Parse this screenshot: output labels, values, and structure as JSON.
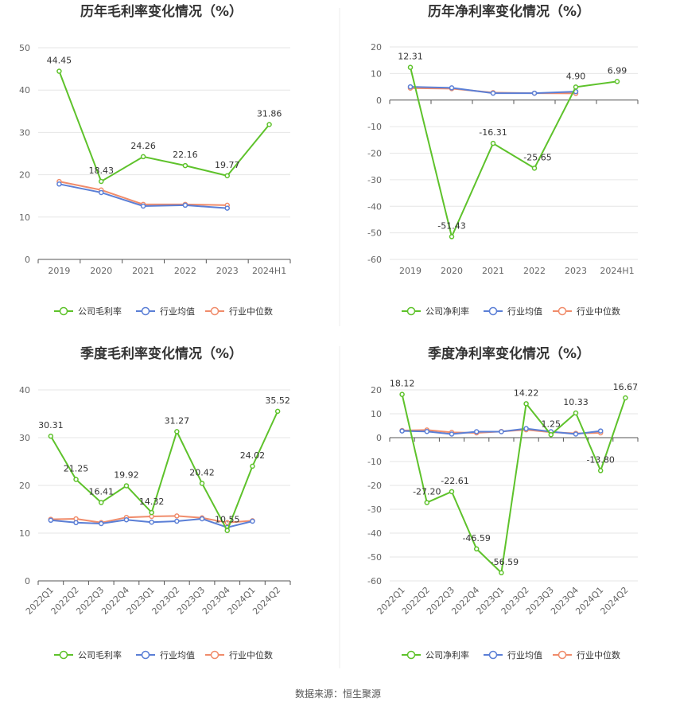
{
  "colors": {
    "company": "#5ec22b",
    "avg": "#5b7fd6",
    "median": "#f08c6b",
    "grid": "#e6e6e6",
    "axis": "#555555"
  },
  "legend": {
    "gross_company": "公司毛利率",
    "net_company": "公司净利率",
    "avg": "行业均值",
    "median": "行业中位数"
  },
  "source": "数据来源：恒生聚源",
  "chart_data": [
    {
      "type": "line",
      "title": "历年毛利率变化情况（%）",
      "categories": [
        "2019",
        "2020",
        "2021",
        "2022",
        "2023",
        "2024H1"
      ],
      "ylim": [
        0,
        50
      ],
      "yticks": [
        0,
        10,
        20,
        30,
        40,
        50
      ],
      "series": [
        {
          "name": "公司毛利率",
          "values": [
            44.45,
            18.43,
            24.26,
            22.16,
            19.77,
            31.86
          ]
        },
        {
          "name": "行业均值",
          "values": [
            17.8,
            15.8,
            12.6,
            12.8,
            12.1,
            null
          ]
        },
        {
          "name": "行业中位数",
          "values": [
            18.4,
            16.4,
            13.0,
            13.0,
            12.8,
            null
          ]
        }
      ],
      "data_labels": [
        "44.45",
        "18.43",
        "24.26",
        "22.16",
        "19.77",
        "31.86"
      ]
    },
    {
      "type": "line",
      "title": "历年净利率变化情况（%）",
      "categories": [
        "2019",
        "2020",
        "2021",
        "2022",
        "2023",
        "2024H1"
      ],
      "ylim": [
        -60,
        20
      ],
      "yticks": [
        -60,
        -50,
        -40,
        -30,
        -20,
        -10,
        0,
        10,
        20
      ],
      "series": [
        {
          "name": "公司净利率",
          "values": [
            12.31,
            -51.43,
            -16.31,
            -25.65,
            4.9,
            6.99
          ]
        },
        {
          "name": "行业均值",
          "values": [
            5.0,
            4.6,
            2.6,
            2.6,
            3.2,
            null
          ]
        },
        {
          "name": "行业中位数",
          "values": [
            4.5,
            4.3,
            2.8,
            2.6,
            2.5,
            null
          ]
        }
      ],
      "data_labels": [
        "12.31",
        "-51.43",
        "-16.31",
        "-25.65",
        "4.90",
        "6.99"
      ]
    },
    {
      "type": "line",
      "title": "季度毛利率变化情况（%）",
      "categories": [
        "2022Q1",
        "2022Q2",
        "2022Q3",
        "2022Q4",
        "2023Q1",
        "2023Q2",
        "2023Q3",
        "2023Q4",
        "2024Q1",
        "2024Q2"
      ],
      "ylim": [
        0,
        40
      ],
      "yticks": [
        0,
        10,
        20,
        30,
        40
      ],
      "series": [
        {
          "name": "公司毛利率",
          "values": [
            30.31,
            21.25,
            16.41,
            19.92,
            14.32,
            31.27,
            20.42,
            10.55,
            24.02,
            35.52
          ]
        },
        {
          "name": "行业均值",
          "values": [
            12.7,
            12.2,
            12.0,
            12.8,
            12.3,
            12.5,
            13.0,
            11.2,
            12.5,
            null
          ]
        },
        {
          "name": "行业中位数",
          "values": [
            12.9,
            13.0,
            12.2,
            13.3,
            13.5,
            13.6,
            13.2,
            12.2,
            12.6,
            null
          ]
        }
      ],
      "data_labels": [
        "30.31",
        "21.25",
        "16.41",
        "19.92",
        "14.32",
        "31.27",
        "20.42",
        "10.55",
        "24.02",
        "35.52"
      ]
    },
    {
      "type": "line",
      "title": "季度净利率变化情况（%）",
      "categories": [
        "2022Q1",
        "2022Q2",
        "2022Q3",
        "2022Q4",
        "2023Q1",
        "2023Q2",
        "2023Q3",
        "2023Q4",
        "2024Q1",
        "2024Q2"
      ],
      "ylim": [
        -60,
        20
      ],
      "yticks": [
        -60,
        -50,
        -40,
        -30,
        -20,
        -10,
        0,
        10,
        20
      ],
      "series": [
        {
          "name": "公司净利率",
          "values": [
            18.12,
            -27.2,
            -22.61,
            -46.59,
            -56.59,
            14.22,
            1.25,
            10.33,
            -13.8,
            16.67
          ]
        },
        {
          "name": "行业均值",
          "values": [
            2.8,
            2.6,
            1.5,
            2.5,
            2.5,
            3.8,
            2.5,
            1.5,
            2.8,
            null
          ]
        },
        {
          "name": "行业中位数",
          "values": [
            3.0,
            3.2,
            2.2,
            2.0,
            2.6,
            3.3,
            2.3,
            1.8,
            2.0,
            null
          ]
        }
      ],
      "data_labels": [
        "18.12",
        "-27.20",
        "-22.61",
        "-46.59",
        "-56.59",
        "14.22",
        "1.25",
        "10.33",
        "-13.80",
        "16.67"
      ]
    }
  ]
}
